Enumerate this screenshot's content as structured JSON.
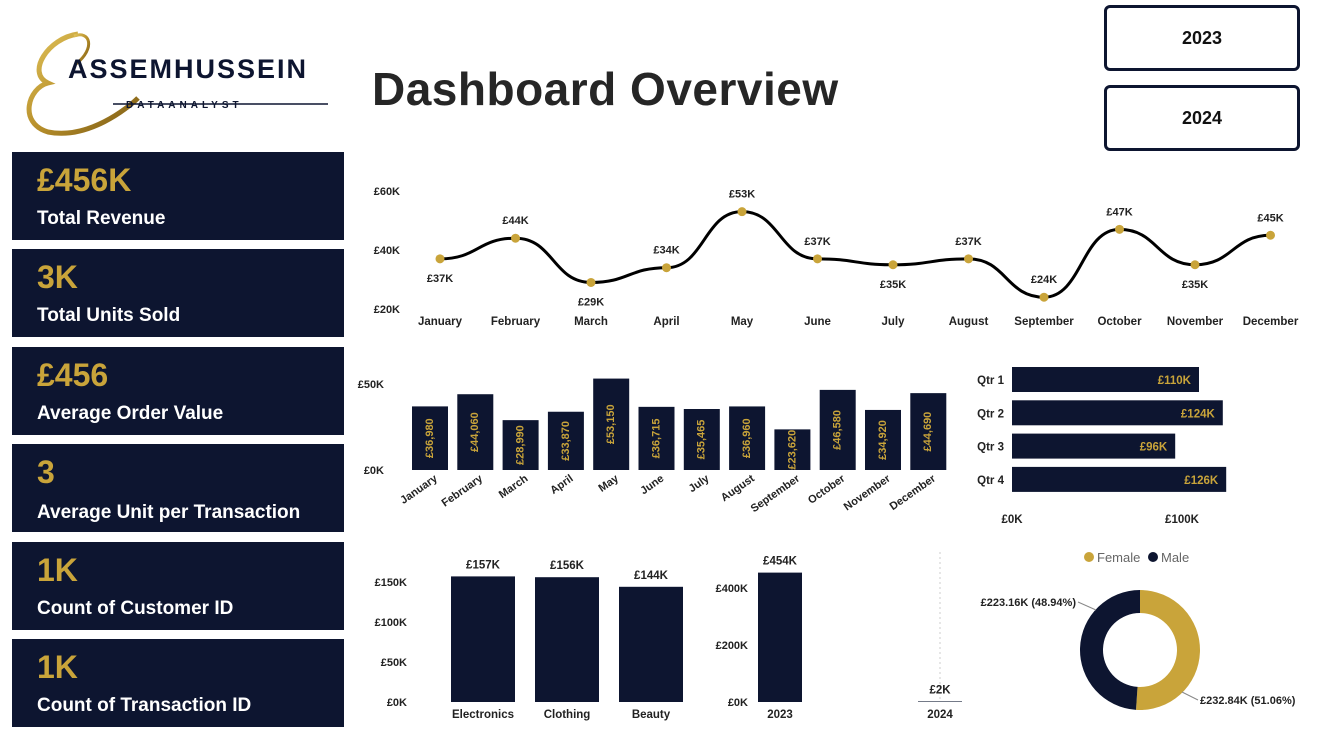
{
  "header": {
    "logo_name": "ASSEMHUSSEIN",
    "logo_sub": "DATAANALYST",
    "title": "Dashboard Overview"
  },
  "year_buttons": [
    "2023",
    "2024"
  ],
  "kpis": [
    {
      "value": "£456K",
      "label": "Total Revenue"
    },
    {
      "value": "3K",
      "label": "Total Units Sold"
    },
    {
      "value": "£456",
      "label": "Average Order Value"
    },
    {
      "value": "3",
      "label": "Average Unit per Transaction"
    },
    {
      "value": "1K",
      "label": "Count of Customer ID"
    },
    {
      "value": "1K",
      "label": "Count of Transaction ID"
    }
  ],
  "colors": {
    "navy": "#0d1530",
    "gold": "#c9a43a"
  },
  "chart_data": [
    {
      "type": "line",
      "categories": [
        "January",
        "February",
        "March",
        "April",
        "May",
        "June",
        "July",
        "August",
        "September",
        "October",
        "November",
        "December"
      ],
      "values": [
        37,
        44,
        29,
        34,
        53,
        37,
        35,
        37,
        24,
        47,
        35,
        45
      ],
      "data_labels": [
        "£37K",
        "£44K",
        "£29K",
        "£34K",
        "£53K",
        "£37K",
        "£35K",
        "£37K",
        "£24K",
        "£47K",
        "£35K",
        "£45K"
      ],
      "yticks": [
        "£20K",
        "£40K",
        "£60K"
      ],
      "ylim": [
        20,
        60
      ]
    },
    {
      "type": "bar",
      "categories": [
        "January",
        "February",
        "March",
        "April",
        "May",
        "June",
        "July",
        "August",
        "September",
        "October",
        "November",
        "December"
      ],
      "values": [
        36980,
        44060,
        28990,
        33870,
        53150,
        36715,
        35465,
        36960,
        23620,
        46580,
        34920,
        44690
      ],
      "data_labels": [
        "£36,980",
        "£44,060",
        "£28,990",
        "£33,870",
        "£53,150",
        "£36,715",
        "£35,465",
        "£36,960",
        "£23,620",
        "£46,580",
        "£34,920",
        "£44,690"
      ],
      "yticks": [
        "£0K",
        "£50K"
      ],
      "ylim": [
        0,
        50000
      ]
    },
    {
      "type": "bar",
      "orientation": "horizontal",
      "categories": [
        "Qtr 1",
        "Qtr 2",
        "Qtr 3",
        "Qtr 4"
      ],
      "values": [
        110,
        124,
        96,
        126
      ],
      "data_labels": [
        "£110K",
        "£124K",
        "£96K",
        "£126K"
      ],
      "xticks": [
        "£0K",
        "£100K"
      ]
    },
    {
      "type": "bar",
      "categories": [
        "Electronics",
        "Clothing",
        "Beauty"
      ],
      "values": [
        157,
        156,
        144
      ],
      "data_labels": [
        "£157K",
        "£156K",
        "£144K"
      ],
      "yticks": [
        "£0K",
        "£50K",
        "£100K",
        "£150K"
      ],
      "ylim": [
        0,
        150
      ]
    },
    {
      "type": "bar",
      "categories": [
        "2023",
        "2024"
      ],
      "values": [
        454,
        2
      ],
      "data_labels": [
        "£454K",
        "£2K"
      ],
      "yticks": [
        "£0K",
        "£200K",
        "£400K"
      ],
      "ylim": [
        0,
        400
      ]
    },
    {
      "type": "pie",
      "legend": [
        "Female",
        "Male"
      ],
      "values": [
        232.84,
        223.16
      ],
      "data_labels": [
        "£232.84K (51.06%)",
        "£223.16K (48.94%)"
      ],
      "legend_position": "top"
    }
  ]
}
